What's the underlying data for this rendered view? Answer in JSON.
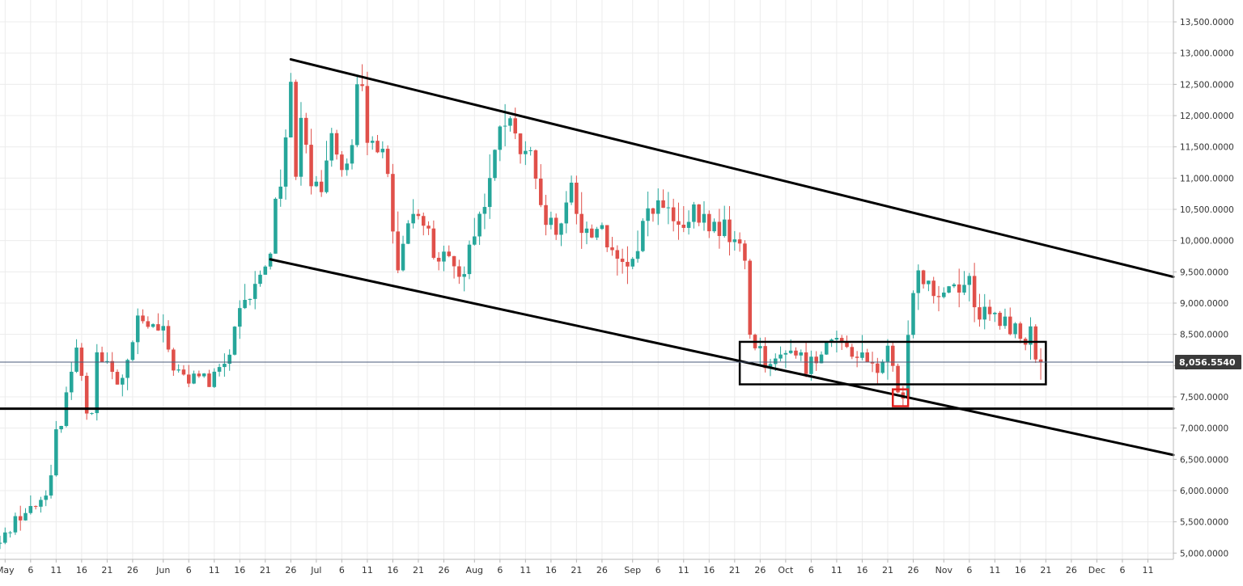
{
  "chart_data": {
    "type": "candlestick",
    "interval": "1 day",
    "x_range": [
      "2019-04-30",
      "2019-12-16"
    ],
    "y_range": [
      4900,
      13850
    ],
    "grid": true,
    "y_ticks": [
      {
        "value": 5000,
        "label": "5,000.0000"
      },
      {
        "value": 5500,
        "label": "5,500.0000"
      },
      {
        "value": 6000,
        "label": "6,000.0000"
      },
      {
        "value": 6500,
        "label": "6,500.0000"
      },
      {
        "value": 7000,
        "label": "7,000.0000"
      },
      {
        "value": 7500,
        "label": "7,500.0000"
      },
      {
        "value": 8000,
        "label": "8,000.0000"
      },
      {
        "value": 8500,
        "label": "8,500.0000"
      },
      {
        "value": 9000,
        "label": "9,000.0000"
      },
      {
        "value": 9500,
        "label": "9,500.0000"
      },
      {
        "value": 10000,
        "label": "10,000.0000"
      },
      {
        "value": 10500,
        "label": "10,500.0000"
      },
      {
        "value": 11000,
        "label": "11,000.0000"
      },
      {
        "value": 11500,
        "label": "11,500.0000"
      },
      {
        "value": 12000,
        "label": "12,000.0000"
      },
      {
        "value": 12500,
        "label": "12,500.0000"
      },
      {
        "value": 13000,
        "label": "13,000.0000"
      },
      {
        "value": 13500,
        "label": "13,500.0000"
      }
    ],
    "x_ticks": [
      {
        "date": "2019-05-01",
        "label": "May"
      },
      {
        "date": "2019-05-06",
        "label": "6"
      },
      {
        "date": "2019-05-11",
        "label": "11"
      },
      {
        "date": "2019-05-16",
        "label": "16"
      },
      {
        "date": "2019-05-21",
        "label": "21"
      },
      {
        "date": "2019-05-26",
        "label": "26"
      },
      {
        "date": "2019-06-01",
        "label": "Jun"
      },
      {
        "date": "2019-06-06",
        "label": "6"
      },
      {
        "date": "2019-06-11",
        "label": "11"
      },
      {
        "date": "2019-06-16",
        "label": "16"
      },
      {
        "date": "2019-06-21",
        "label": "21"
      },
      {
        "date": "2019-06-26",
        "label": "26"
      },
      {
        "date": "2019-07-01",
        "label": "Jul"
      },
      {
        "date": "2019-07-06",
        "label": "6"
      },
      {
        "date": "2019-07-11",
        "label": "11"
      },
      {
        "date": "2019-07-16",
        "label": "16"
      },
      {
        "date": "2019-07-21",
        "label": "21"
      },
      {
        "date": "2019-07-26",
        "label": "26"
      },
      {
        "date": "2019-08-01",
        "label": "Aug"
      },
      {
        "date": "2019-08-06",
        "label": "6"
      },
      {
        "date": "2019-08-11",
        "label": "11"
      },
      {
        "date": "2019-08-16",
        "label": "16"
      },
      {
        "date": "2019-08-21",
        "label": "21"
      },
      {
        "date": "2019-08-26",
        "label": "26"
      },
      {
        "date": "2019-09-01",
        "label": "Sep"
      },
      {
        "date": "2019-09-06",
        "label": "6"
      },
      {
        "date": "2019-09-11",
        "label": "11"
      },
      {
        "date": "2019-09-16",
        "label": "16"
      },
      {
        "date": "2019-09-21",
        "label": "21"
      },
      {
        "date": "2019-09-26",
        "label": "26"
      },
      {
        "date": "2019-10-01",
        "label": "Oct"
      },
      {
        "date": "2019-10-06",
        "label": "6"
      },
      {
        "date": "2019-10-11",
        "label": "11"
      },
      {
        "date": "2019-10-16",
        "label": "16"
      },
      {
        "date": "2019-10-21",
        "label": "21"
      },
      {
        "date": "2019-10-26",
        "label": "26"
      },
      {
        "date": "2019-11-01",
        "label": "Nov"
      },
      {
        "date": "2019-11-06",
        "label": "6"
      },
      {
        "date": "2019-11-11",
        "label": "11"
      },
      {
        "date": "2019-11-16",
        "label": "16"
      },
      {
        "date": "2019-11-21",
        "label": "21"
      },
      {
        "date": "2019-11-26",
        "label": "26"
      },
      {
        "date": "2019-12-01",
        "label": "Dec"
      },
      {
        "date": "2019-12-06",
        "label": "6"
      },
      {
        "date": "2019-12-11",
        "label": "11"
      }
    ],
    "current_price": {
      "value": 8056.554,
      "label": "8,056.5540"
    },
    "price_points": [
      [
        "2019-04-30",
        5150
      ],
      [
        "2019-05-03",
        5550
      ],
      [
        "2019-05-06",
        5700
      ],
      [
        "2019-05-08",
        5850
      ],
      [
        "2019-05-10",
        6200
      ],
      [
        "2019-05-11",
        6900
      ],
      [
        "2019-05-12",
        6950
      ],
      [
        "2019-05-13",
        7700
      ],
      [
        "2019-05-14",
        7950
      ],
      [
        "2019-05-15",
        8200
      ],
      [
        "2019-05-16",
        7900
      ],
      [
        "2019-05-17",
        7300
      ],
      [
        "2019-05-18",
        7350
      ],
      [
        "2019-05-19",
        8200
      ],
      [
        "2019-05-21",
        8000
      ],
      [
        "2019-05-23",
        7700
      ],
      [
        "2019-05-25",
        8000
      ],
      [
        "2019-05-27",
        8700
      ],
      [
        "2019-05-30",
        8600
      ],
      [
        "2019-06-01",
        8500
      ],
      [
        "2019-06-03",
        8000
      ],
      [
        "2019-06-06",
        7700
      ],
      [
        "2019-06-08",
        7900
      ],
      [
        "2019-06-10",
        7700
      ],
      [
        "2019-06-12",
        7900
      ],
      [
        "2019-06-14",
        8200
      ],
      [
        "2019-06-16",
        8800
      ],
      [
        "2019-06-18",
        9100
      ],
      [
        "2019-06-20",
        9400
      ],
      [
        "2019-06-22",
        9900
      ],
      [
        "2019-06-23",
        10600
      ],
      [
        "2019-06-24",
        11000
      ],
      [
        "2019-06-25",
        11700
      ],
      [
        "2019-06-26",
        12400
      ],
      [
        "2019-06-27",
        11200
      ],
      [
        "2019-06-28",
        12100
      ],
      [
        "2019-06-29",
        11700
      ],
      [
        "2019-06-30",
        11000
      ],
      [
        "2019-07-02",
        10600
      ],
      [
        "2019-07-04",
        11900
      ],
      [
        "2019-07-06",
        11100
      ],
      [
        "2019-07-08",
        11400
      ],
      [
        "2019-07-09",
        12400
      ],
      [
        "2019-07-10",
        12300
      ],
      [
        "2019-07-11",
        11500
      ],
      [
        "2019-07-13",
        11600
      ],
      [
        "2019-07-15",
        11000
      ],
      [
        "2019-07-16",
        10100
      ],
      [
        "2019-07-17",
        9450
      ],
      [
        "2019-07-18",
        9800
      ],
      [
        "2019-07-20",
        10500
      ],
      [
        "2019-07-22",
        10400
      ],
      [
        "2019-07-24",
        9800
      ],
      [
        "2019-07-26",
        9700
      ],
      [
        "2019-07-28",
        9500
      ],
      [
        "2019-07-30",
        9600
      ],
      [
        "2019-08-01",
        10200
      ],
      [
        "2019-08-03",
        10600
      ],
      [
        "2019-08-05",
        11300
      ],
      [
        "2019-08-06",
        11900
      ],
      [
        "2019-08-08",
        11800
      ],
      [
        "2019-08-10",
        11400
      ],
      [
        "2019-08-12",
        11300
      ],
      [
        "2019-08-14",
        10400
      ],
      [
        "2019-08-16",
        10200
      ],
      [
        "2019-08-18",
        10100
      ],
      [
        "2019-08-20",
        10900
      ],
      [
        "2019-08-22",
        10200
      ],
      [
        "2019-08-24",
        10100
      ],
      [
        "2019-08-26",
        10300
      ],
      [
        "2019-08-28",
        9700
      ],
      [
        "2019-08-30",
        9550
      ],
      [
        "2019-09-01",
        9600
      ],
      [
        "2019-09-03",
        10300
      ],
      [
        "2019-09-05",
        10600
      ],
      [
        "2019-09-07",
        10500
      ],
      [
        "2019-09-09",
        10300
      ],
      [
        "2019-09-11",
        10100
      ],
      [
        "2019-09-13",
        10400
      ],
      [
        "2019-09-15",
        10300
      ],
      [
        "2019-09-17",
        10200
      ],
      [
        "2019-09-19",
        10200
      ],
      [
        "2019-09-21",
        10000
      ],
      [
        "2019-09-23",
        9700
      ],
      [
        "2019-09-24",
        8500
      ],
      [
        "2019-09-25",
        8400
      ],
      [
        "2019-09-27",
        8100
      ],
      [
        "2019-09-29",
        8000
      ],
      [
        "2019-10-01",
        8300
      ],
      [
        "2019-10-03",
        8200
      ],
      [
        "2019-10-05",
        8000
      ],
      [
        "2019-10-07",
        8100
      ],
      [
        "2019-10-09",
        8500
      ],
      [
        "2019-10-11",
        8300
      ],
      [
        "2019-10-13",
        8300
      ],
      [
        "2019-10-15",
        8200
      ],
      [
        "2019-10-17",
        8000
      ],
      [
        "2019-10-19",
        7950
      ],
      [
        "2019-10-21",
        8200
      ],
      [
        "2019-10-22",
        8000
      ],
      [
        "2019-10-23",
        7450
      ],
      [
        "2019-10-24",
        7400
      ],
      [
        "2019-10-25",
        8600
      ],
      [
        "2019-10-26",
        9300
      ],
      [
        "2019-10-27",
        9500
      ],
      [
        "2019-10-29",
        9400
      ],
      [
        "2019-10-31",
        9150
      ],
      [
        "2019-11-02",
        9300
      ],
      [
        "2019-11-04",
        9300
      ],
      [
        "2019-11-06",
        9350
      ],
      [
        "2019-11-08",
        8800
      ],
      [
        "2019-11-10",
        8800
      ],
      [
        "2019-11-12",
        8700
      ],
      [
        "2019-11-14",
        8650
      ],
      [
        "2019-11-16",
        8450
      ],
      [
        "2019-11-18",
        8500
      ],
      [
        "2019-11-19",
        8100
      ],
      [
        "2019-11-20",
        8056.554
      ]
    ],
    "overlays": {
      "upper_trendline": [
        [
          "2019-06-26",
          12900
        ],
        [
          "2019-12-16",
          9420
        ]
      ],
      "lower_trendline": [
        [
          "2019-06-22",
          9700
        ],
        [
          "2019-12-16",
          6570
        ]
      ],
      "support_line": [
        [
          "2019-04-30",
          7310
        ],
        [
          "2019-12-16",
          7310
        ]
      ],
      "range_box": {
        "from": "2019-09-22",
        "to": "2019-11-21",
        "low": 7700,
        "high": 8380
      },
      "highlight_box": {
        "from": "2019-10-22",
        "to": "2019-10-25",
        "low": 7350,
        "high": 7620
      }
    },
    "colors": {
      "bull": "#26a69a",
      "bear": "#e0504a",
      "trendline": "#000000",
      "highlight": "#e0201e",
      "price_label_bg": "#3a3a3a",
      "price_line": "#4a5a78"
    }
  }
}
